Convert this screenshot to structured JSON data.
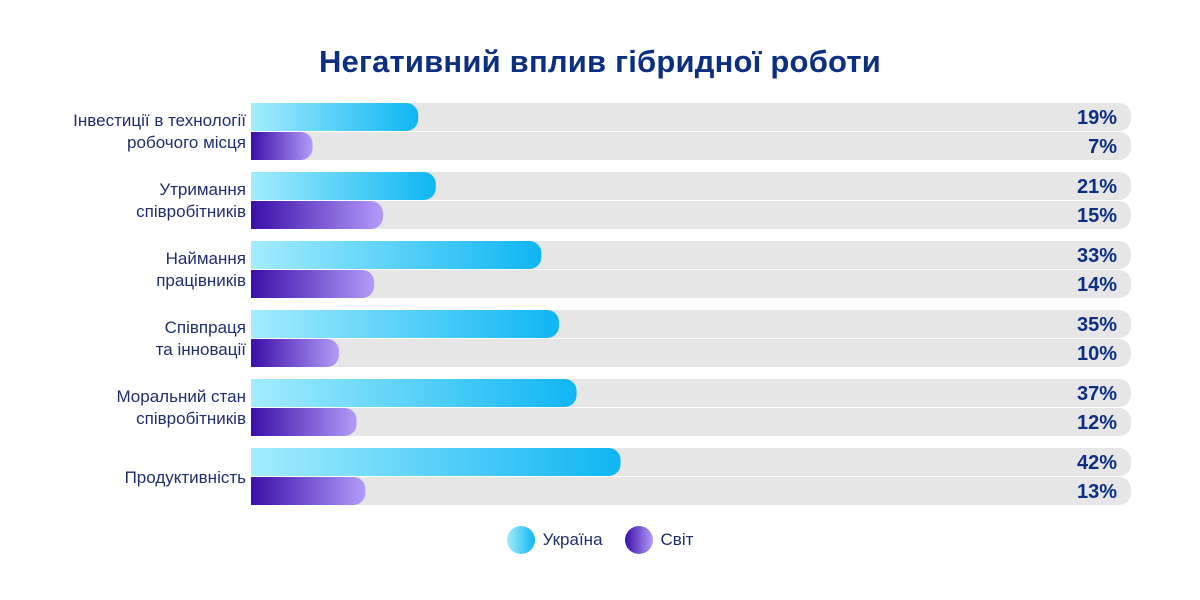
{
  "chart_data": {
    "type": "bar",
    "orientation": "horizontal",
    "title": "Негативний вплив гібридної роботи",
    "xlim": [
      0,
      100
    ],
    "categories": [
      [
        "Інвестиції в технології",
        "робочого місця"
      ],
      [
        "Утримання",
        "співробітників"
      ],
      [
        "Наймання",
        "працівників"
      ],
      [
        "Співпраця",
        "та інновації"
      ],
      [
        "Моральний стан",
        "співробітників"
      ],
      [
        "Продуктивність"
      ]
    ],
    "series": [
      {
        "name": "Україна",
        "values": [
          19,
          21,
          33,
          35,
          37,
          42
        ],
        "labels": [
          "19%",
          "21%",
          "33%",
          "35%",
          "37%",
          "42%"
        ]
      },
      {
        "name": "Світ",
        "values": [
          7,
          15,
          14,
          10,
          12,
          13
        ],
        "labels": [
          "7%",
          "15%",
          "14%",
          "10%",
          "12%",
          "13%"
        ]
      }
    ],
    "colors": {
      "track": "#e6e6e6",
      "ukraine_start": "#a3ecfc",
      "ukraine_end": "#0fb6f3",
      "world_start": "#3a0fa8",
      "world_end": "#b39bf9",
      "text": "#1f2f6b",
      "title": "#0d2f82"
    }
  }
}
